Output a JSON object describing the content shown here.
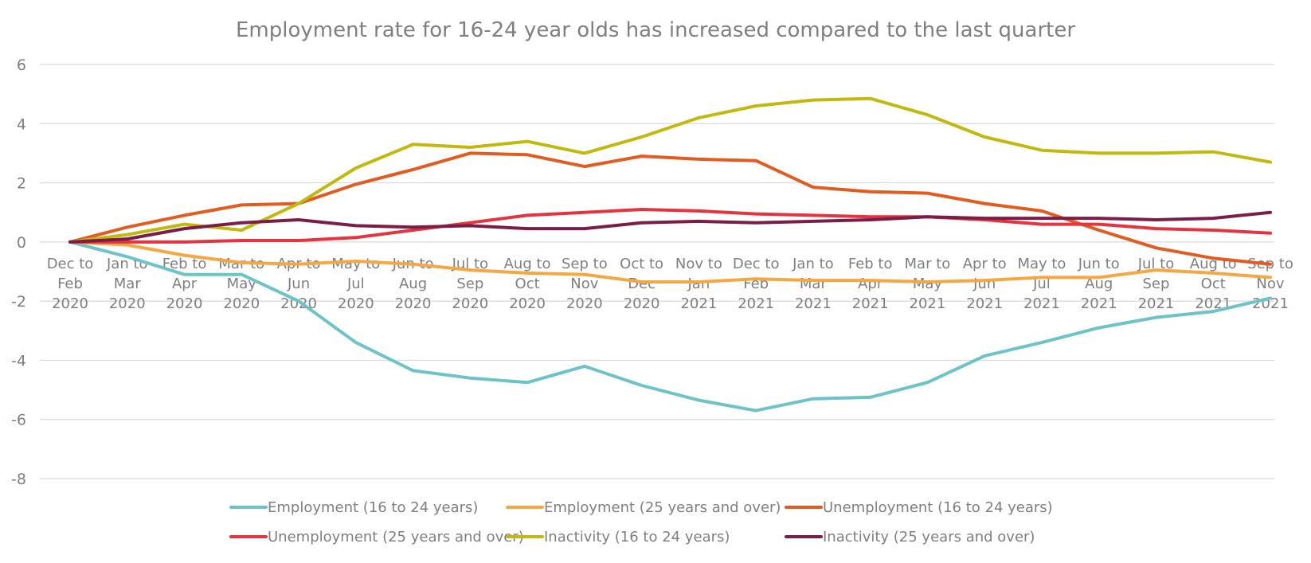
{
  "chart_data": {
    "type": "line",
    "title": "Employment rate for 16-24 year olds has increased compared to the last quarter",
    "xlabel": "",
    "ylabel": "",
    "ylim": [
      -8,
      6
    ],
    "yticks": [
      "6",
      "4",
      "2",
      "0",
      "-2",
      "-4",
      "-6",
      "-8"
    ],
    "grid": true,
    "legend_position": "bottom",
    "categories": [
      [
        "Dec to",
        "Feb",
        "2020"
      ],
      [
        "Jan to",
        "Mar",
        "2020"
      ],
      [
        "Feb to",
        "Apr",
        "2020"
      ],
      [
        "Mar to",
        "May",
        "2020"
      ],
      [
        "Apr to",
        "Jun",
        "2020"
      ],
      [
        "May to",
        "Jul",
        "2020"
      ],
      [
        "Jun to",
        "Aug",
        "2020"
      ],
      [
        "Jul to",
        "Sep",
        "2020"
      ],
      [
        "Aug to",
        "Oct",
        "2020"
      ],
      [
        "Sep to",
        "Nov",
        "2020"
      ],
      [
        "Oct to",
        "Dec",
        "2020"
      ],
      [
        "Nov to",
        "Jan",
        "2021"
      ],
      [
        "Dec to",
        "Feb",
        "2021"
      ],
      [
        "Jan to",
        "Mar",
        "2021"
      ],
      [
        "Feb to",
        "Apr",
        "2021"
      ],
      [
        "Mar to",
        "May",
        "2021"
      ],
      [
        "Apr to",
        "Jun",
        "2021"
      ],
      [
        "May to",
        "Jul",
        "2021"
      ],
      [
        "Jun to",
        "Aug",
        "2021"
      ],
      [
        "Jul to",
        "Sep",
        "2021"
      ],
      [
        "Aug to",
        "Oct",
        "2021"
      ],
      [
        "Sep to",
        "Nov",
        "2021"
      ]
    ],
    "series": [
      {
        "name": "Employment (16 to 24 years)",
        "color": "#6cc3c8",
        "values": [
          0,
          -0.5,
          -1.1,
          -1.1,
          -2.0,
          -3.4,
          -4.35,
          -4.6,
          -4.75,
          -4.2,
          -4.85,
          -5.35,
          -5.7,
          -5.3,
          -5.25,
          -4.75,
          -3.85,
          -3.4,
          -2.9,
          -2.55,
          -2.35,
          -1.9
        ]
      },
      {
        "name": "Employment (25 years and over)",
        "color": "#f5a742",
        "values": [
          0,
          -0.1,
          -0.45,
          -0.7,
          -0.75,
          -0.65,
          -0.75,
          -0.95,
          -1.05,
          -1.1,
          -1.35,
          -1.35,
          -1.25,
          -1.3,
          -1.3,
          -1.35,
          -1.3,
          -1.2,
          -1.2,
          -0.95,
          -1.05,
          -1.2
        ]
      },
      {
        "name": "Unemployment (16 to 24 years)",
        "color": "#e35b1e",
        "values": [
          0,
          0.5,
          0.9,
          1.25,
          1.3,
          1.95,
          2.45,
          3.0,
          2.95,
          2.55,
          2.9,
          2.8,
          2.75,
          1.85,
          1.7,
          1.65,
          1.3,
          1.05,
          0.4,
          -0.2,
          -0.55,
          -0.75
        ]
      },
      {
        "name": "Unemployment (25 years and over)",
        "color": "#e4343f",
        "values": [
          0,
          0.0,
          0.0,
          0.05,
          0.05,
          0.15,
          0.4,
          0.65,
          0.9,
          1.0,
          1.1,
          1.05,
          0.95,
          0.9,
          0.85,
          0.85,
          0.75,
          0.6,
          0.6,
          0.45,
          0.4,
          0.3
        ]
      },
      {
        "name": "Inactivity (16 to 24 years)",
        "color": "#c2b90e",
        "values": [
          0,
          0.25,
          0.6,
          0.4,
          1.3,
          2.5,
          3.3,
          3.2,
          3.4,
          3.0,
          3.55,
          4.2,
          4.6,
          4.8,
          4.85,
          4.3,
          3.55,
          3.1,
          3.0,
          3.0,
          3.05,
          2.7
        ]
      },
      {
        "name": "Inactivity (25 years and over)",
        "color": "#7b1e47",
        "values": [
          0,
          0.1,
          0.45,
          0.65,
          0.75,
          0.55,
          0.5,
          0.55,
          0.45,
          0.45,
          0.65,
          0.7,
          0.65,
          0.7,
          0.75,
          0.85,
          0.8,
          0.8,
          0.8,
          0.75,
          0.8,
          1.0
        ]
      }
    ]
  }
}
